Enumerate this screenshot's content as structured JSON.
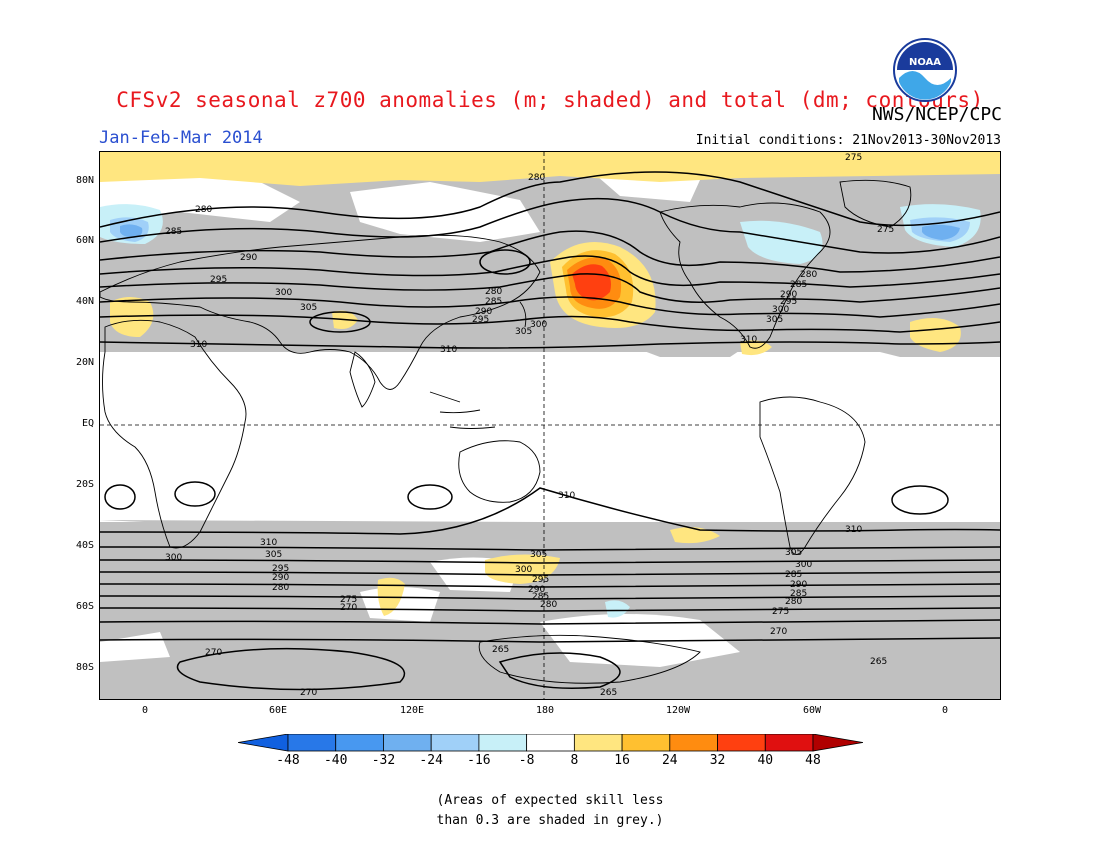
{
  "title": "CFSv2 seasonal z700 anomalies (m; shaded) and total (dm; contours)",
  "agency": "NWS/NCEP/CPC",
  "period": "Jan-Feb-Mar 2014",
  "initial_conditions": "Initial conditions: 21Nov2013-30Nov2013",
  "logo": {
    "icon": "noaa-logo-icon",
    "text": "NOAA"
  },
  "map": {
    "lat_ticks": [
      "80N",
      "60N",
      "40N",
      "20N",
      "EQ",
      "20S",
      "40S",
      "60S",
      "80S"
    ],
    "lon_ticks": [
      "0",
      "60E",
      "120E",
      "180",
      "120W",
      "60W",
      "0"
    ],
    "contour_labels": {
      "nh": [
        "275",
        "280",
        "285",
        "290",
        "295",
        "300",
        "305",
        "310"
      ],
      "sh": [
        "310",
        "305",
        "300",
        "295",
        "290",
        "285",
        "280",
        "275",
        "270",
        "265"
      ],
      "other": [
        "280",
        "280",
        "300",
        "285",
        "310",
        "265",
        "265",
        "270",
        "270",
        "275",
        "310"
      ]
    },
    "colors": {
      "grey_low_skill": "#c0c0c0",
      "warm_8_16": "#ffe680",
      "warm_16_24": "#ffc030",
      "warm_24_32": "#ff8c10",
      "warm_32_40": "#ff4010",
      "cool_8_16": "#c8f0f8",
      "cool_16_24": "#a0d0f8",
      "cool_24_32": "#6fb0f0"
    }
  },
  "colorbar": {
    "ticks": [
      "-48",
      "-40",
      "-32",
      "-24",
      "-16",
      "-8",
      "8",
      "16",
      "24",
      "32",
      "40",
      "48"
    ],
    "colors": [
      "#1060e0",
      "#2878e8",
      "#4898f0",
      "#6fb0f0",
      "#a0d0f8",
      "#c8f0f8",
      "#ffffff",
      "#ffe680",
      "#ffc030",
      "#ff8c10",
      "#ff4010",
      "#e01010",
      "#b00000"
    ]
  },
  "footnote": {
    "line1": "(Areas of expected skill less",
    "line2": "than 0.3 are shaded in grey.)"
  }
}
